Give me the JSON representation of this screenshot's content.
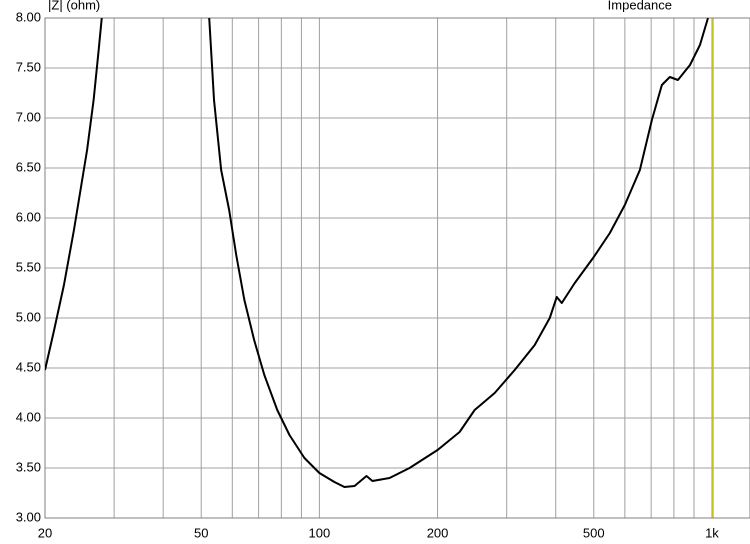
{
  "chart_data": {
    "type": "line",
    "title": "Impedance",
    "ylabel": "|Z| (ohm)",
    "xscale": "log",
    "xlim": [
      20,
      1250
    ],
    "ylim": [
      3,
      8
    ],
    "xticks": [
      20,
      50,
      100,
      200,
      500,
      {
        "value": 1000,
        "label": "1k"
      }
    ],
    "xminor": [
      30,
      40,
      60,
      70,
      80,
      90,
      300,
      400,
      600,
      700,
      800,
      900
    ],
    "yticks": [
      {
        "value": 3,
        "label": "3.00"
      },
      {
        "value": 3.5,
        "label": "3.50"
      },
      {
        "value": 4,
        "label": "4.00"
      },
      {
        "value": 4.5,
        "label": "4.50"
      },
      {
        "value": 5,
        "label": "5.00"
      },
      {
        "value": 5.5,
        "label": "5.50"
      },
      {
        "value": 6,
        "label": "6.00"
      },
      {
        "value": 6.5,
        "label": "6.50"
      },
      {
        "value": 7,
        "label": "7.00"
      },
      {
        "value": 7.5,
        "label": "7.50"
      },
      {
        "value": 8,
        "label": "8.00"
      }
    ],
    "grid": true,
    "grid_color": "#a0a0a0",
    "cursor_x": 1000,
    "cursor_color": "#c8c800",
    "x": [
      20,
      21.1,
      22.35,
      23.7,
      25.6,
      26.6,
      27.4,
      27.9,
      null,
      52.4,
      53.9,
      56.2,
      58.9,
      61.4,
      64.4,
      68.2,
      72.4,
      78.1,
      83.9,
      91.6,
      100,
      109.2,
      115.8,
      122.9,
      131.8,
      136.5,
      150.9,
      169.7,
      200,
      227.6,
      248.6,
      279.6,
      314.4,
      353.6,
      386.2,
      402.4,
      414.4,
      447.2,
      500,
      549.4,
      599.8,
      655.2,
      703,
      745.4,
      781,
      819,
      879,
      932,
      977
    ],
    "series": [
      {
        "color": "#000000",
        "values": [
          4.48,
          4.88,
          5.33,
          5.88,
          6.68,
          7.18,
          7.68,
          8.0,
          null,
          8.0,
          7.18,
          6.48,
          6.08,
          5.63,
          5.18,
          4.78,
          4.43,
          4.08,
          3.83,
          3.6,
          3.45,
          3.36,
          3.31,
          3.32,
          3.42,
          3.37,
          3.4,
          3.5,
          3.68,
          3.86,
          4.08,
          4.25,
          4.48,
          4.73,
          5.0,
          5.21,
          5.15,
          5.35,
          5.61,
          5.85,
          6.13,
          6.48,
          6.98,
          7.33,
          7.41,
          7.38,
          7.53,
          7.73,
          8.0
        ]
      }
    ]
  }
}
